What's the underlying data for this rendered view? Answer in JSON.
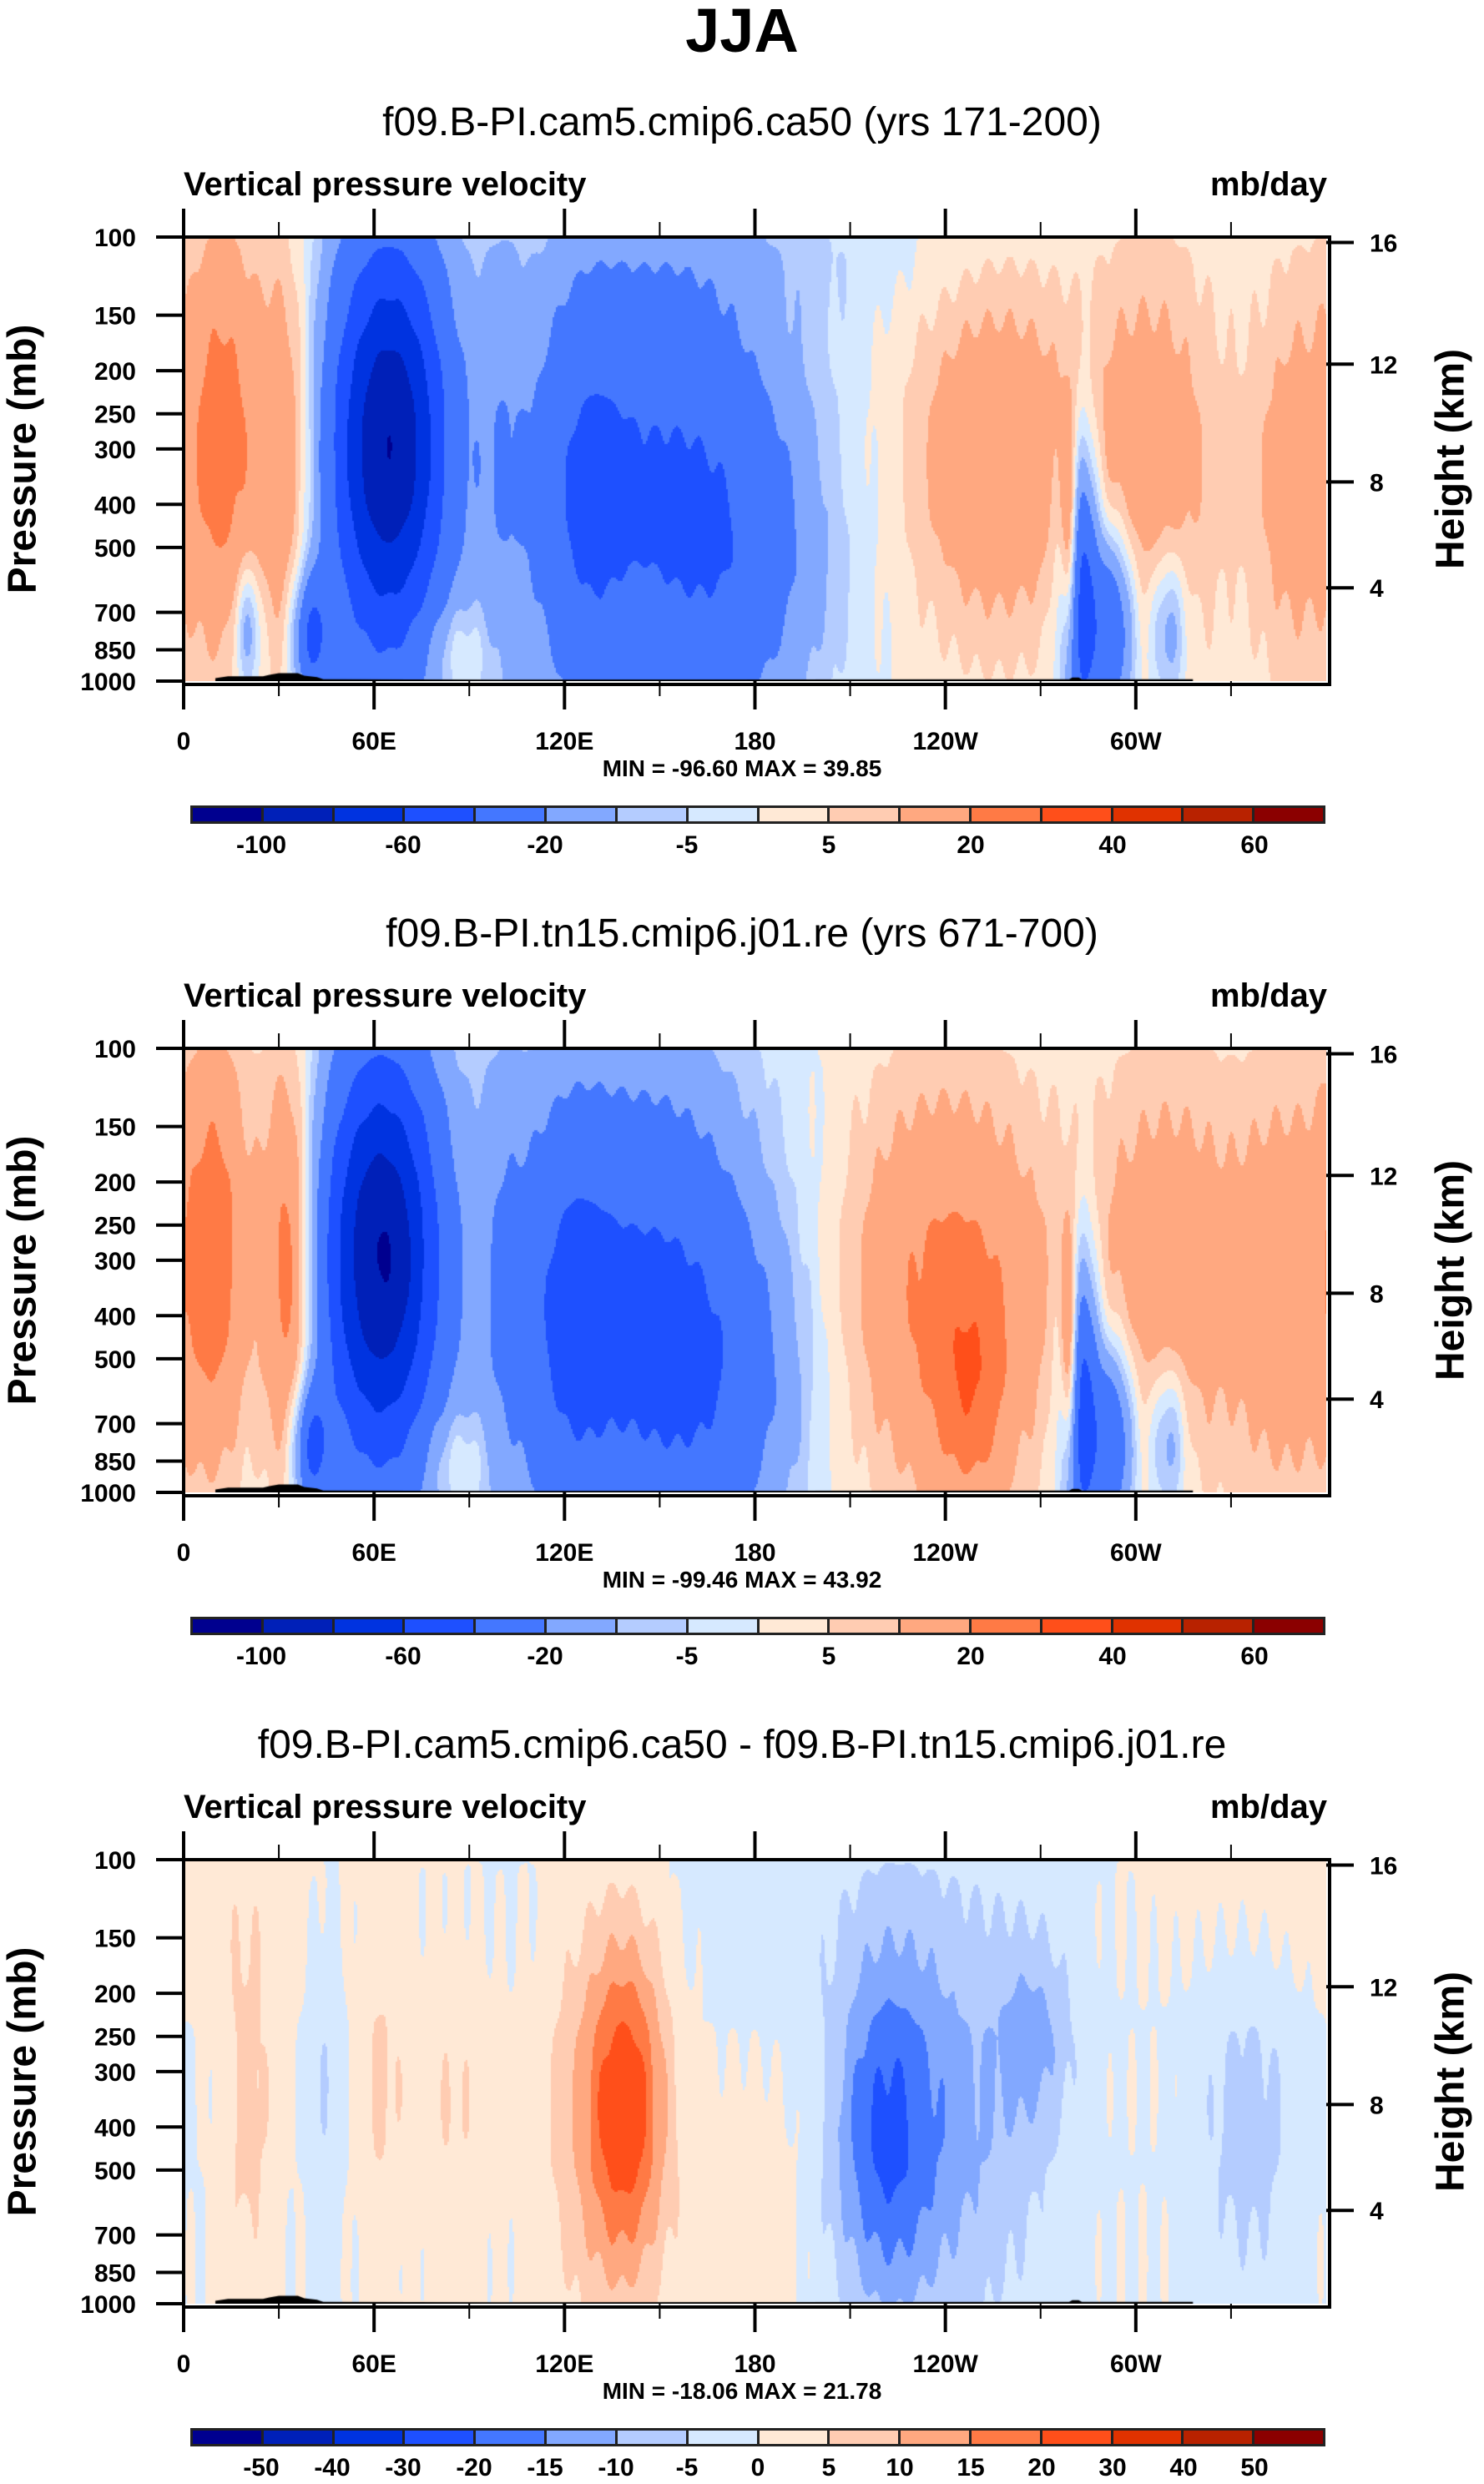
{
  "figure_title": "JJA",
  "chart_data": [
    {
      "type": "heatmap",
      "title": "f09.B-PI.cam5.cmip6.ca50 (yrs 171-200)",
      "left_string": "Vertical pressure velocity",
      "right_string": "mb/day",
      "xlabel": "",
      "ylabel": "Pressure (mb)",
      "ylabel_right": "Height (km)",
      "x_range": [
        0,
        360
      ],
      "x_ticks": [
        {
          "value": 0,
          "label": "0"
        },
        {
          "value": 60,
          "label": "60E"
        },
        {
          "value": 120,
          "label": "120E"
        },
        {
          "value": 180,
          "label": "180"
        },
        {
          "value": 240,
          "label": "120W"
        },
        {
          "value": 300,
          "label": "60W"
        }
      ],
      "x_minor_ticks": [
        30,
        90,
        150,
        210,
        270,
        330
      ],
      "y_range_mb": [
        1000,
        100
      ],
      "y_scale": "log",
      "y_ticks": [
        100,
        150,
        200,
        250,
        300,
        400,
        500,
        700,
        850,
        1000
      ],
      "y_right_ticks_km": [
        4,
        8,
        12,
        16
      ],
      "min": -96.6,
      "max": 39.85,
      "minmax_text": "MIN = -96.60  MAX =  39.85",
      "levels": [
        -100,
        -80,
        -60,
        -40,
        -20,
        -10,
        -5,
        0,
        5,
        10,
        20,
        30,
        40,
        50,
        60
      ],
      "level_labels": [
        "-100",
        "",
        "-60",
        "",
        "-20",
        "",
        "-5",
        "",
        "5",
        "",
        "20",
        "",
        "40",
        "",
        "60"
      ],
      "field": "ca50",
      "features": [
        "Strong ascent (blue) centered near 60E, minimum near 300 mb",
        "Broad ascent 120E-180, from surface to ~150 mb",
        "Descent (red) 0-40E and 110W-0",
        "Narrow ascent column near 80W-75W in lower troposphere"
      ]
    },
    {
      "type": "heatmap",
      "title": "f09.B-PI.tn15.cmip6.j01.re (yrs 671-700)",
      "left_string": "Vertical pressure velocity",
      "right_string": "mb/day",
      "xlabel": "",
      "ylabel": "Pressure (mb)",
      "ylabel_right": "Height (km)",
      "x_range": [
        0,
        360
      ],
      "x_ticks": [
        {
          "value": 0,
          "label": "0"
        },
        {
          "value": 60,
          "label": "60E"
        },
        {
          "value": 120,
          "label": "120E"
        },
        {
          "value": 180,
          "label": "180"
        },
        {
          "value": 240,
          "label": "120W"
        },
        {
          "value": 300,
          "label": "60W"
        }
      ],
      "x_minor_ticks": [
        30,
        90,
        150,
        210,
        270,
        330
      ],
      "y_range_mb": [
        1000,
        100
      ],
      "y_scale": "log",
      "y_ticks": [
        100,
        150,
        200,
        250,
        300,
        400,
        500,
        700,
        850,
        1000
      ],
      "y_right_ticks_km": [
        4,
        8,
        12,
        16
      ],
      "min": -99.46,
      "max": 43.92,
      "minmax_text": "MIN = -99.46  MAX =  43.92",
      "levels": [
        -100,
        -80,
        -60,
        -40,
        -20,
        -10,
        -5,
        0,
        5,
        10,
        20,
        30,
        40,
        50,
        60
      ],
      "level_labels": [
        "-100",
        "",
        "-60",
        "",
        "-20",
        "",
        "-5",
        "",
        "5",
        "",
        "20",
        "",
        "40",
        "",
        "60"
      ],
      "field": "j01",
      "features": [
        "Strong ascent near 60E, minimum near 300 mb",
        "Broad ascent 100E-190E",
        "Enhanced descent 160W-100W (up to ~30 mb/day near 500-700 mb)",
        "Descent 0-40E and 70W-0"
      ]
    },
    {
      "type": "heatmap",
      "title": "f09.B-PI.cam5.cmip6.ca50 - f09.B-PI.tn15.cmip6.j01.re",
      "left_string": "Vertical pressure velocity",
      "right_string": "mb/day",
      "xlabel": "",
      "ylabel": "Pressure (mb)",
      "ylabel_right": "Height (km)",
      "x_range": [
        0,
        360
      ],
      "x_ticks": [
        {
          "value": 0,
          "label": "0"
        },
        {
          "value": 60,
          "label": "60E"
        },
        {
          "value": 120,
          "label": "120E"
        },
        {
          "value": 180,
          "label": "180"
        },
        {
          "value": 240,
          "label": "120W"
        },
        {
          "value": 300,
          "label": "60W"
        }
      ],
      "x_minor_ticks": [
        30,
        90,
        150,
        210,
        270,
        330
      ],
      "y_range_mb": [
        1000,
        100
      ],
      "y_scale": "log",
      "y_ticks": [
        100,
        150,
        200,
        250,
        300,
        400,
        500,
        700,
        850,
        1000
      ],
      "y_right_ticks_km": [
        4,
        8,
        12,
        16
      ],
      "min": -18.06,
      "max": 21.78,
      "minmax_text": "MIN = -18.06  MAX =  21.78",
      "levels": [
        -50,
        -40,
        -30,
        -20,
        -15,
        -10,
        -5,
        0,
        5,
        10,
        15,
        20,
        30,
        40,
        50
      ],
      "level_labels": [
        "-50",
        "-40",
        "-30",
        "-20",
        "-15",
        "-10",
        "-5",
        "0",
        "5",
        "10",
        "15",
        "20",
        "30",
        "40",
        "50"
      ],
      "field": "diff",
      "features": [
        "Positive difference (red) 120E-160E peaking ~20 near 400 mb",
        "Negative difference (blue) 160W-100W down to ~-18 near 300-700 mb",
        "Weak negative 50W-10W"
      ]
    }
  ],
  "colormap": [
    "#00008f",
    "#0020b8",
    "#0033e0",
    "#1e50ff",
    "#4477ff",
    "#82a8ff",
    "#b4ccff",
    "#d6e9ff",
    "#ffe9d6",
    "#ffccb2",
    "#ffa880",
    "#ff7a45",
    "#ff4f1a",
    "#e03200",
    "#b82200",
    "#8b0000"
  ],
  "topography_color": "#000000"
}
